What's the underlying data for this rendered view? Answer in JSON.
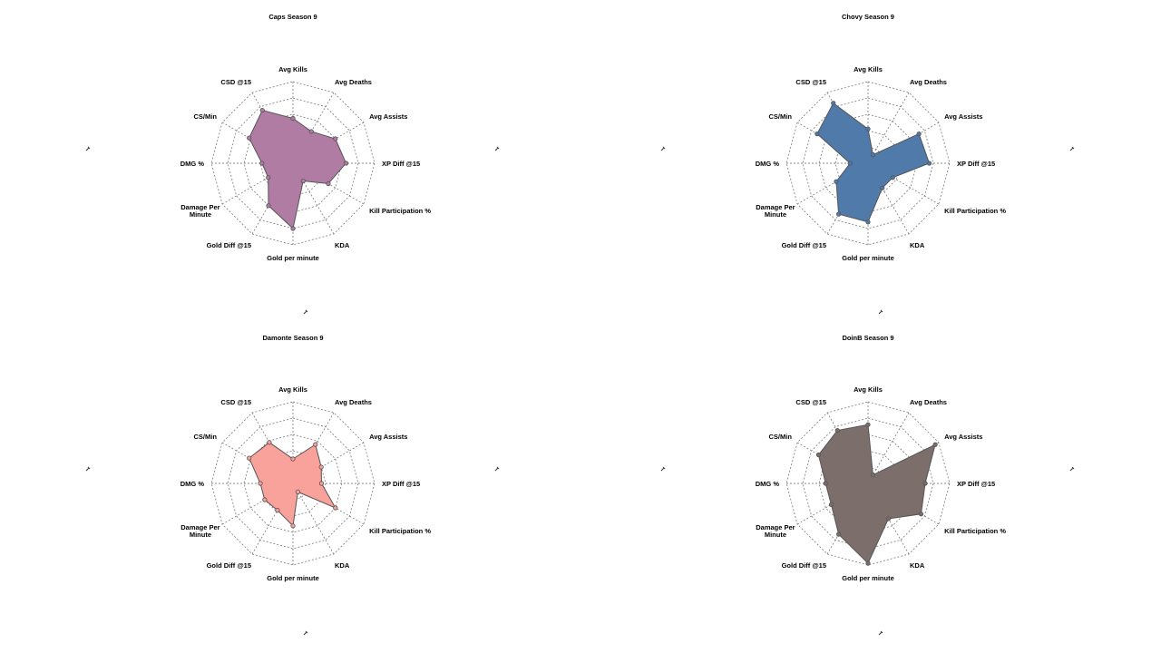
{
  "chart_data": [
    {
      "type": "radar",
      "title": "Caps Season 9",
      "color": "#b07ca4",
      "axes": [
        "Avg Kills",
        "Avg Deaths",
        "Avg Assists",
        "XP Diff @15",
        "Kill Participation %",
        "KDA",
        "Gold per minute",
        "Gold Diff @15",
        "Damage Per\nMinute",
        "DMG %",
        "CS/Min",
        "CSD @15"
      ],
      "values": [
        0.55,
        0.45,
        0.6,
        0.65,
        0.5,
        0.25,
        0.8,
        0.6,
        0.35,
        0.38,
        0.62,
        0.75
      ],
      "range": [
        0,
        1
      ],
      "rings": 5,
      "grid": true
    },
    {
      "type": "radar",
      "title": "Chovy Season 9",
      "color": "#4f7aaa",
      "axes": [
        "Avg Kills",
        "Avg Deaths",
        "Avg Assists",
        "XP Diff @15",
        "Kill Participation %",
        "KDA",
        "Gold per minute",
        "Gold Diff @15",
        "Damage Per\nMinute",
        "DMG %",
        "CS/Min",
        "CSD @15"
      ],
      "values": [
        0.42,
        0.12,
        0.72,
        0.75,
        0.35,
        0.35,
        0.72,
        0.72,
        0.45,
        0.22,
        0.72,
        0.85
      ],
      "range": [
        0,
        1
      ],
      "rings": 5,
      "grid": true
    },
    {
      "type": "radar",
      "title": "Damonte Season 9",
      "color": "#f9a19b",
      "axes": [
        "Avg Kills",
        "Avg Deaths",
        "Avg Assists",
        "XP Diff @15",
        "Kill Participation %",
        "KDA",
        "Gold per minute",
        "Gold Diff @15",
        "Damage Per\nMinute",
        "DMG %",
        "CS/Min",
        "CSD @15"
      ],
      "values": [
        0.3,
        0.55,
        0.4,
        0.35,
        0.6,
        0.12,
        0.52,
        0.38,
        0.4,
        0.4,
        0.62,
        0.58
      ],
      "range": [
        0,
        1
      ],
      "rings": 5,
      "grid": true
    },
    {
      "type": "radar",
      "title": "DoinB Season 9",
      "color": "#7b6e6b",
      "axes": [
        "Avg Kills",
        "Avg Deaths",
        "Avg Assists",
        "XP Diff @15",
        "Kill Participation %",
        "KDA",
        "Gold per minute",
        "Gold Diff @15",
        "Damage Per\nMinute",
        "DMG %",
        "CS/Min",
        "CSD @15"
      ],
      "values": [
        0.72,
        0.12,
        0.95,
        0.7,
        0.75,
        0.5,
        0.98,
        0.72,
        0.52,
        0.52,
        0.7,
        0.75
      ],
      "range": [
        0,
        1
      ],
      "rings": 5,
      "grid": true
    }
  ]
}
